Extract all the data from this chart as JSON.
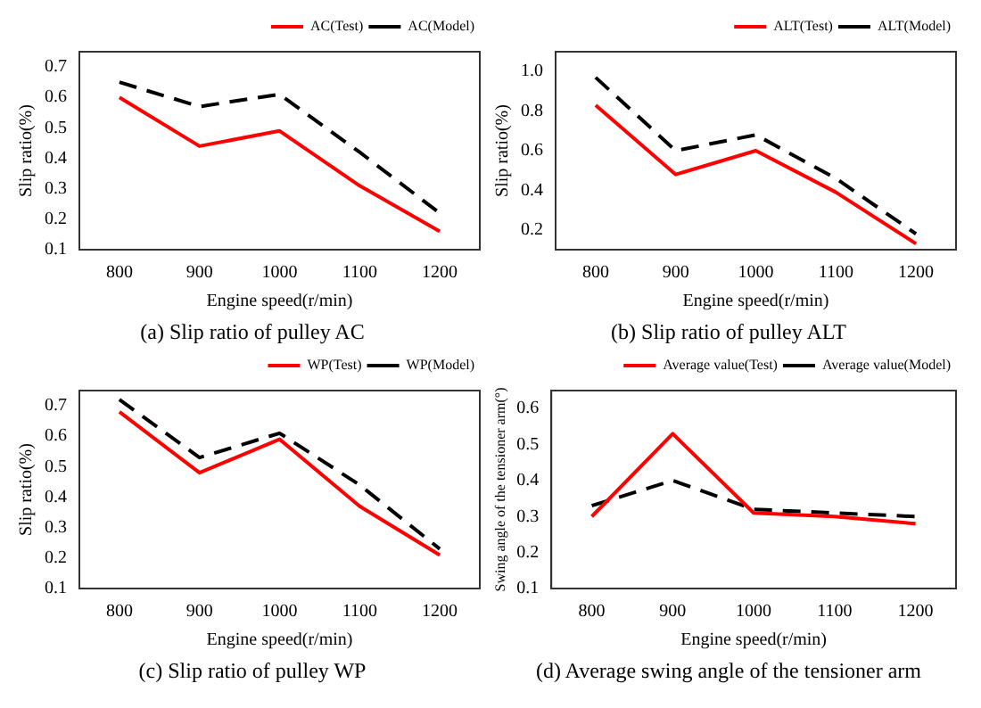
{
  "chart_data": [
    {
      "type": "line",
      "title": "(a) Slip ratio of pulley AC",
      "xlabel": "Engine speed(r/min)",
      "ylabel": "Slip ratio(%)",
      "x": [
        800,
        900,
        1000,
        1100,
        1200
      ],
      "xlim": [
        750,
        1250
      ],
      "xticks": [
        800,
        900,
        1000,
        1100,
        1200
      ],
      "ylim": [
        0.1,
        0.75
      ],
      "yticks": [
        0.1,
        0.2,
        0.3,
        0.4,
        0.5,
        0.6,
        0.7
      ],
      "grid": false,
      "legend": "top right",
      "marker": "none",
      "series": [
        {
          "name": "AC(Test)",
          "color": "#ff0000",
          "line_style": "solid",
          "values": [
            0.6,
            0.44,
            0.49,
            0.31,
            0.16
          ]
        },
        {
          "name": "AC(Model)",
          "color": "#000000",
          "line_style": "dashed",
          "values": [
            0.65,
            0.57,
            0.61,
            0.42,
            0.22
          ]
        }
      ]
    },
    {
      "type": "line",
      "title": "(b) Slip ratio of pulley ALT",
      "xlabel": "Engine speed(r/min)",
      "ylabel": "Slip ratio(%)",
      "x": [
        800,
        900,
        1000,
        1100,
        1200
      ],
      "xlim": [
        750,
        1250
      ],
      "xticks": [
        800,
        900,
        1000,
        1100,
        1200
      ],
      "ylim": [
        0.1,
        1.1
      ],
      "yticks": [
        {
          "value": 0.2,
          "label": "0.2"
        },
        {
          "value": 0.4,
          "label": "0.4"
        },
        {
          "value": 0.6,
          "label": "0.6"
        },
        {
          "value": 0.8,
          "label": "0.8"
        },
        {
          "value": 1.0,
          "label": "1.0"
        }
      ],
      "grid": false,
      "legend": "top right",
      "marker": "none",
      "series": [
        {
          "name": "ALT(Test)",
          "color": "#ff0000",
          "line_style": "solid",
          "values": [
            0.83,
            0.48,
            0.6,
            0.39,
            0.13
          ]
        },
        {
          "name": "ALT(Model)",
          "color": "#000000",
          "line_style": "dashed",
          "values": [
            0.97,
            0.6,
            0.68,
            0.46,
            0.18
          ]
        }
      ]
    },
    {
      "type": "line",
      "title": "(c) Slip ratio of pulley WP",
      "xlabel": "Engine speed(r/min)",
      "ylabel": "Slip ratio(%)",
      "x": [
        800,
        900,
        1000,
        1100,
        1200
      ],
      "xlim": [
        750,
        1250
      ],
      "xticks": [
        800,
        900,
        1000,
        1100,
        1200
      ],
      "ylim": [
        0.1,
        0.75
      ],
      "yticks": [
        0.1,
        0.2,
        0.3,
        0.4,
        0.5,
        0.6,
        0.7
      ],
      "grid": false,
      "legend": "top right",
      "marker": "none",
      "series": [
        {
          "name": "WP(Test)",
          "color": "#ff0000",
          "line_style": "solid",
          "values": [
            0.68,
            0.48,
            0.59,
            0.37,
            0.21
          ]
        },
        {
          "name": "WP(Model)",
          "color": "#000000",
          "line_style": "dashed",
          "values": [
            0.72,
            0.53,
            0.61,
            0.44,
            0.23
          ]
        }
      ]
    },
    {
      "type": "line",
      "title": "(d) Average swing angle of the tensioner arm",
      "xlabel": "Engine speed(r/min)",
      "ylabel": "Swing angle of the tensioner arm(°)",
      "x": [
        800,
        900,
        1000,
        1100,
        1200
      ],
      "xlim": [
        750,
        1250
      ],
      "xticks": [
        800,
        900,
        1000,
        1100,
        1200
      ],
      "ylim": [
        0.1,
        0.65
      ],
      "yticks": [
        0.1,
        0.2,
        0.3,
        0.4,
        0.5,
        0.6
      ],
      "grid": false,
      "legend": "top right",
      "marker": "none",
      "series": [
        {
          "name": "Average value(Test)",
          "color": "#ff0000",
          "line_style": "solid",
          "values": [
            0.3,
            0.53,
            0.31,
            0.3,
            0.28
          ]
        },
        {
          "name": "Average value(Model)",
          "color": "#000000",
          "line_style": "dashed",
          "values": [
            0.33,
            0.4,
            0.32,
            0.31,
            0.3
          ]
        }
      ]
    }
  ]
}
